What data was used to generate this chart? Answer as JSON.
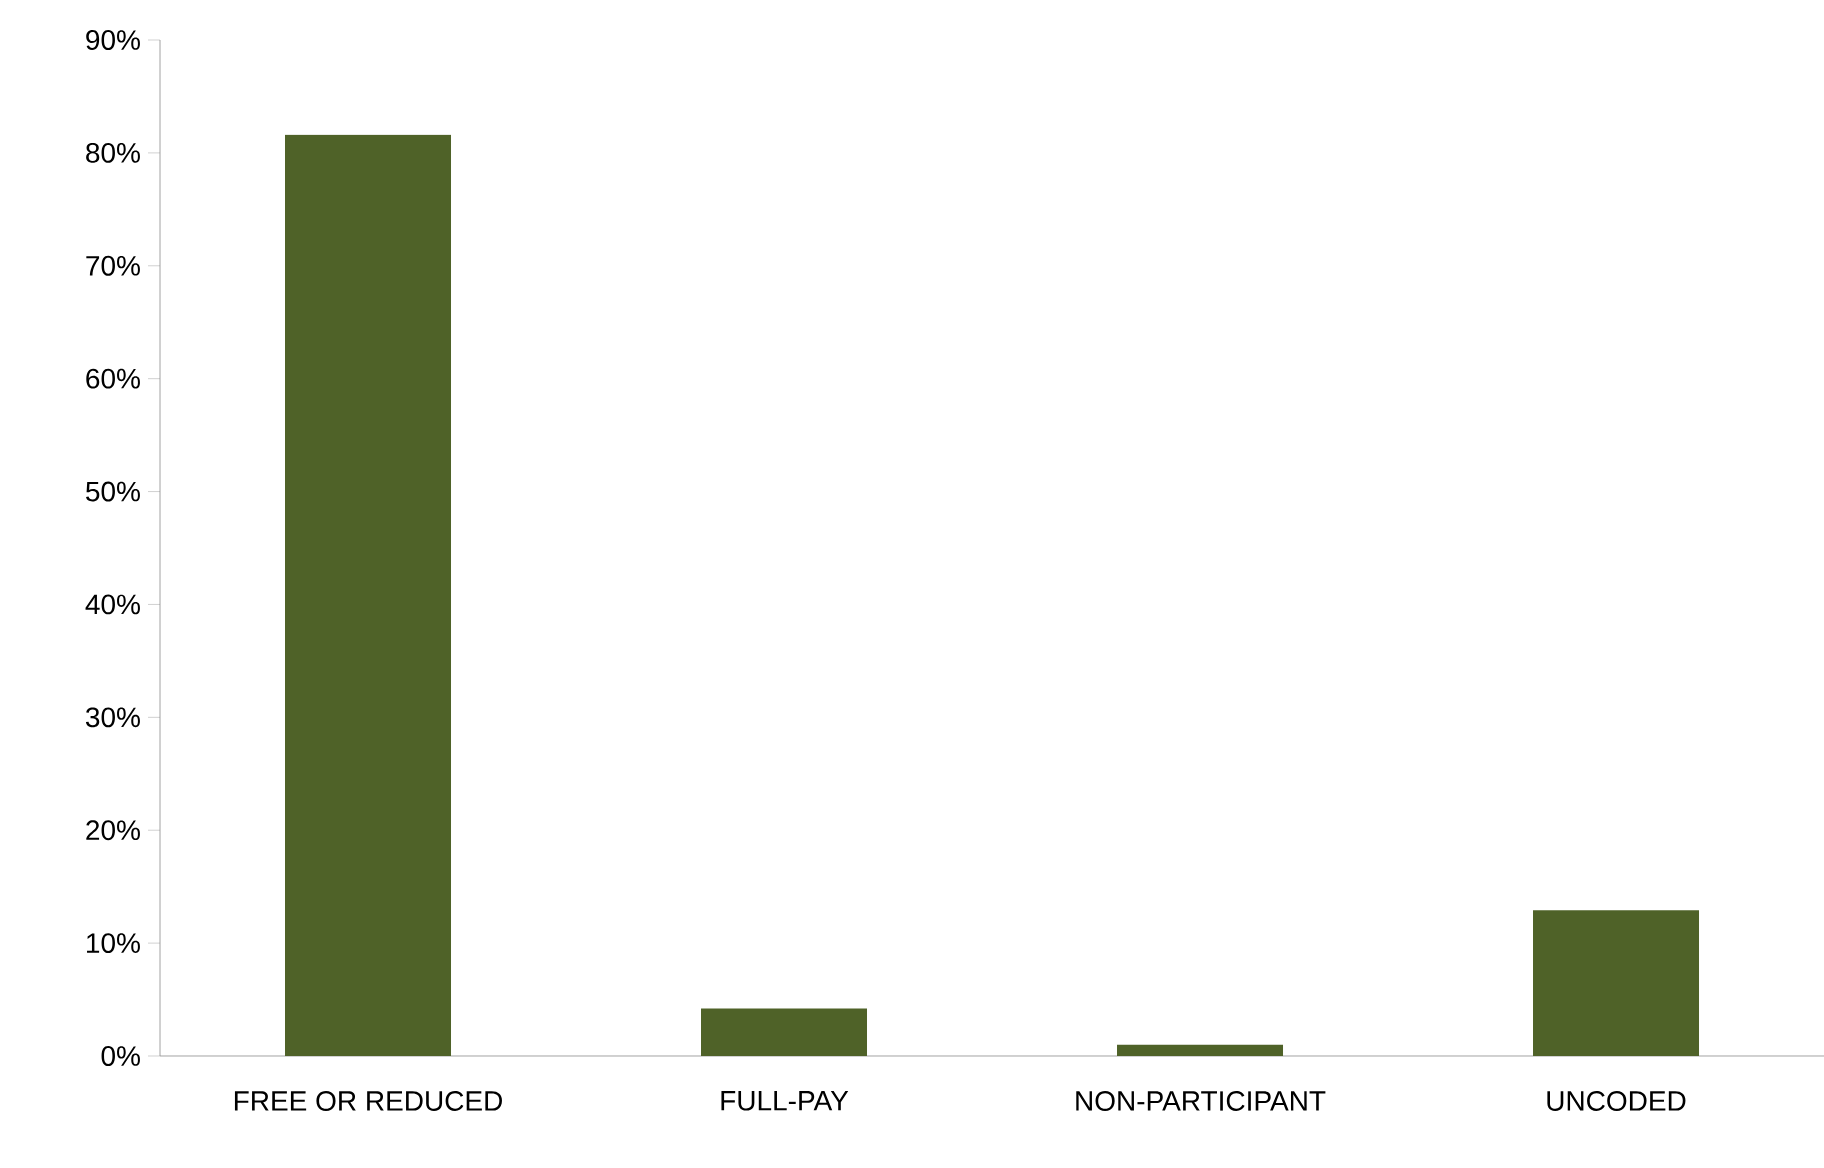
{
  "chart_data": {
    "type": "bar",
    "categories": [
      "FREE OR REDUCED",
      "FULL-PAY",
      "NON-PARTICIPANT",
      "UNCODED"
    ],
    "values": [
      81.6,
      4.2,
      1.0,
      12.9
    ],
    "color": "#4f6228",
    "ylim": [
      0,
      90
    ],
    "yticks": [
      {
        "value": 0,
        "label": "0%"
      },
      {
        "value": 10,
        "label": "10%"
      },
      {
        "value": 20,
        "label": "20%"
      },
      {
        "value": 30,
        "label": "30%"
      },
      {
        "value": 40,
        "label": "40%"
      },
      {
        "value": 50,
        "label": "50%"
      },
      {
        "value": 60,
        "label": "60%"
      },
      {
        "value": 70,
        "label": "70%"
      },
      {
        "value": 80,
        "label": "80%"
      },
      {
        "value": 90,
        "label": "90%"
      }
    ],
    "grid": false
  }
}
